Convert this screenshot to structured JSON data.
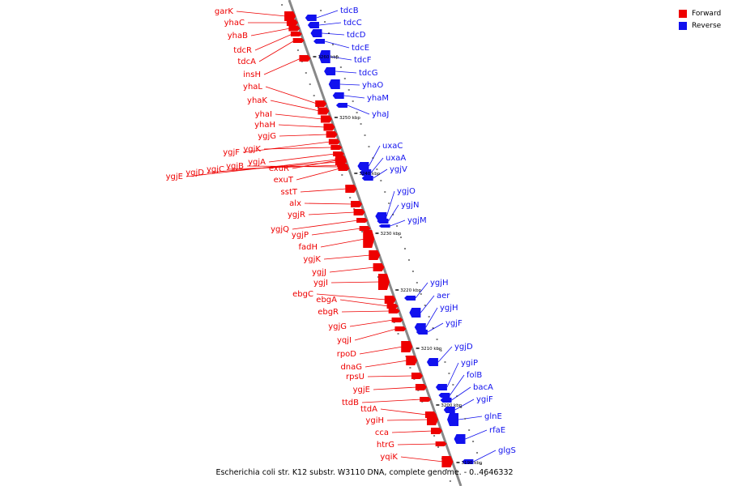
{
  "colors": {
    "forward": "#ee0000",
    "reverse": "#1111ee",
    "backbone": "#888888",
    "ticks": "#000000"
  },
  "legend": [
    {
      "label": "Forward",
      "color": "#ee0000"
    },
    {
      "label": "Reverse",
      "color": "#1111ee"
    }
  ],
  "caption": "Escherichia coli str. K12 substr. W3110 DNA, complete genome. - 0..4646332",
  "scale_labels": [
    "3260 kbp",
    "3250 kbp",
    "3240 kbp",
    "3230 kbp",
    "3220 kbp",
    "3210 kbp",
    "3200 kbp",
    "3190 kbp"
  ],
  "forward_genes": [
    "garK",
    "yhaC",
    "yhaB",
    "tdcR",
    "tdcA",
    "insH",
    "yhaL",
    "yhaK",
    "yhaI",
    "yhaH",
    "ygjG",
    "ygjF",
    "ygjK",
    "ygjA",
    "exuR",
    "exuT",
    "ygjE",
    "ygjD",
    "ygjC",
    "ygjB",
    "sstT",
    "alx",
    "ygjR",
    "ygjQ",
    "ygjP",
    "fadH",
    "ygjK",
    "ygjJ",
    "ygjI",
    "ebgC",
    "ebgA",
    "ebgR",
    "ygjG",
    "yqjI",
    "rpoD",
    "dnaG",
    "rpsU",
    "ygjE",
    "ttdB",
    "ttdA",
    "ygiH",
    "cca",
    "htrG",
    "yqiK"
  ],
  "reverse_genes": [
    "tdcB",
    "tdcC",
    "tdcD",
    "tdcE",
    "tdcF",
    "tdcG",
    "yhaO",
    "yhaM",
    "yhaJ",
    "uxaC",
    "uxaA",
    "ygjV",
    "ygjO",
    "ygjN",
    "ygjM",
    "ygjH",
    "aer",
    "ygjH",
    "ygjF",
    "ygjD",
    "ygiP",
    "folB",
    "bacA",
    "ygiF",
    "glnE",
    "rfaE",
    "glgS"
  ]
}
